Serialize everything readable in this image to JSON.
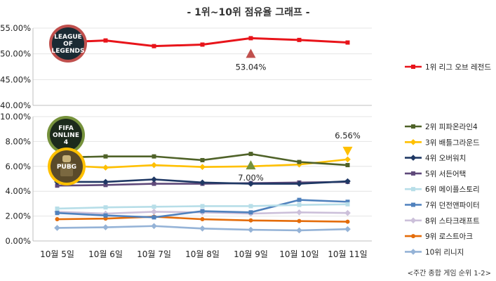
{
  "title": "- 1위~10위 점유율 그래프 -",
  "source": "<주간 종합 게임 순위 1-2>",
  "chart_data": [
    {
      "type": "line",
      "categories": [
        "10월 5일",
        "10월 6일",
        "10월 7일",
        "10월 8일",
        "10월 9일",
        "10월 10일",
        "10월 11일"
      ],
      "ylim": [
        40,
        55
      ],
      "yticks": [
        "40.00%",
        "45.00%",
        "50.00%",
        "55.00%"
      ],
      "yticks_values": [
        40,
        45,
        50,
        55
      ],
      "series": [
        {
          "name": "1위 리그 오브 레전드",
          "color": "#e8141a",
          "marker": "square",
          "values": [
            52.2,
            52.6,
            51.5,
            51.8,
            53.04,
            52.7,
            52.2
          ]
        }
      ],
      "annotations": [
        {
          "text": "53.04%",
          "category": "10월 9일",
          "value": 53.04,
          "series": 0,
          "arrow": "up",
          "arrow_color": "#c0504d"
        }
      ]
    },
    {
      "type": "line",
      "categories": [
        "10월 5일",
        "10월 6일",
        "10월 7일",
        "10월 8일",
        "10월 9일",
        "10월 10일",
        "10월 11일"
      ],
      "ylim": [
        0,
        10
      ],
      "yticks": [
        "0.00%",
        "2.00%",
        "4.00%",
        "6.00%",
        "8.00%",
        "10.00%"
      ],
      "yticks_values": [
        0,
        2,
        4,
        6,
        8,
        10
      ],
      "series": [
        {
          "name": "2위 피파온라인4",
          "color": "#4f6228",
          "marker": "square",
          "values": [
            6.7,
            6.8,
            6.8,
            6.5,
            7.0,
            6.35,
            6.1
          ]
        },
        {
          "name": "3위 배틀그라운드",
          "color": "#ffc000",
          "marker": "diamond",
          "values": [
            6.1,
            5.9,
            6.1,
            5.95,
            6.0,
            6.15,
            6.56
          ]
        },
        {
          "name": "4위 오버워치",
          "color": "#1f3864",
          "marker": "diamond",
          "values": [
            4.75,
            4.75,
            4.95,
            4.7,
            4.6,
            4.6,
            4.8
          ]
        },
        {
          "name": "5위 서든어택",
          "color": "#5f497a",
          "marker": "square",
          "values": [
            4.45,
            4.5,
            4.6,
            4.6,
            4.65,
            4.7,
            4.75
          ]
        },
        {
          "name": "6위 메이플스토리",
          "color": "#b7dee8",
          "marker": "square",
          "values": [
            2.6,
            2.7,
            2.75,
            2.8,
            2.8,
            2.9,
            2.95
          ]
        },
        {
          "name": "7위 던전앤파이터",
          "color": "#4f81bd",
          "marker": "square",
          "values": [
            2.25,
            2.05,
            1.9,
            2.4,
            2.3,
            3.3,
            3.15
          ]
        },
        {
          "name": "8위 스타크래프트",
          "color": "#ccc0da",
          "marker": "diamond",
          "values": [
            2.35,
            2.2,
            2.35,
            2.3,
            2.2,
            2.3,
            2.25
          ]
        },
        {
          "name": "9위 로스트아크",
          "color": "#e46c0a",
          "marker": "circle",
          "values": [
            1.75,
            1.8,
            1.95,
            1.75,
            1.65,
            1.6,
            1.55
          ]
        },
        {
          "name": "10위 리니지",
          "color": "#95b3d7",
          "marker": "diamond",
          "values": [
            1.05,
            1.1,
            1.2,
            1.0,
            0.9,
            0.85,
            0.95
          ]
        }
      ],
      "annotations": [
        {
          "text": "6.56%",
          "category": "10월 11일",
          "value": 6.56,
          "series": 1,
          "arrow": "down",
          "arrow_color": "#ffc000"
        },
        {
          "text": "7.00%",
          "category": "10월 9일",
          "value": 7.0,
          "series": 0,
          "arrow": "up",
          "arrow_color": "#76923c"
        }
      ]
    }
  ],
  "logos": [
    {
      "text": "LEAGUE OF LEGENDS",
      "ring": "#c0504d",
      "fill": "#1a2a33"
    },
    {
      "text": "FIFA ONLINE 4",
      "ring": "#76923c",
      "fill": "#1c2a1c"
    },
    {
      "text": "PUBG",
      "ring": "#ffc000",
      "fill": "#5a4a2a"
    }
  ]
}
